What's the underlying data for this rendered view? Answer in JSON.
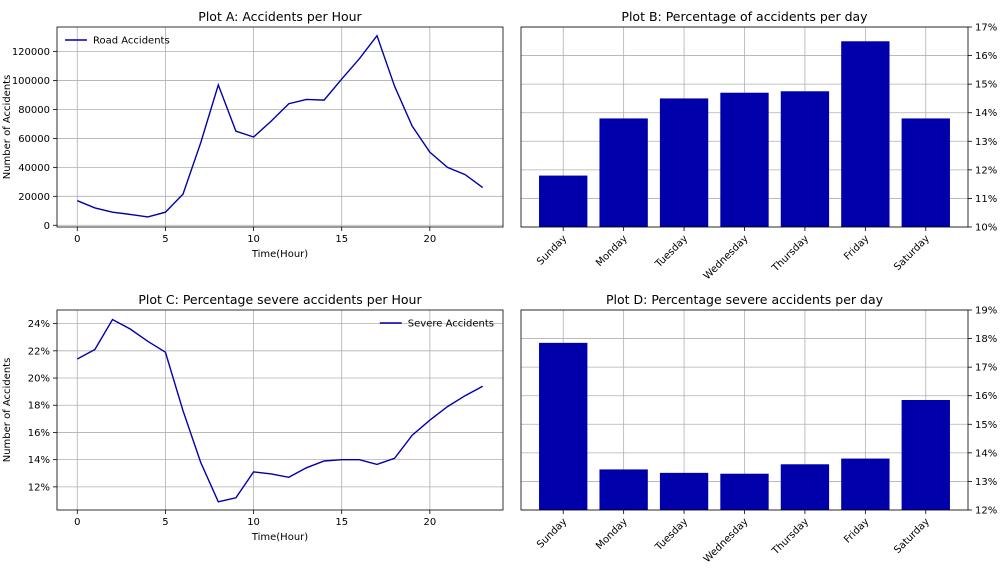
{
  "colors": {
    "accent": "#0000aa",
    "grid": "#b0b0b0",
    "axis": "#000000"
  },
  "chart_data": [
    {
      "id": "A",
      "type": "line",
      "title": "Plot A: Accidents per Hour",
      "xlabel": "Time(Hour)",
      "ylabel": "Number of Accidents",
      "xlim": [
        -1.15,
        24.15
      ],
      "ylim": [
        -1200,
        137000
      ],
      "xticks": [
        0,
        5,
        10,
        15,
        20
      ],
      "xtick_labels": [
        "0",
        "5",
        "10",
        "15",
        "20"
      ],
      "yticks": [
        0,
        20000,
        40000,
        60000,
        80000,
        100000,
        120000
      ],
      "ytick_labels": [
        "0",
        "20000",
        "40000",
        "60000",
        "80000",
        "100000",
        "120000"
      ],
      "y_axis_side": "left",
      "grid": true,
      "legend_position": "top-left",
      "series": [
        {
          "name": "Road Accidents",
          "x": [
            0,
            1,
            2,
            3,
            4,
            5,
            6,
            7,
            8,
            9,
            10,
            11,
            12,
            13,
            14,
            15,
            16,
            17,
            18,
            19,
            20,
            21,
            22,
            23
          ],
          "values": [
            17000,
            12000,
            9000,
            7500,
            5800,
            9000,
            21500,
            57000,
            97000,
            65000,
            61000,
            72000,
            84000,
            87000,
            86500,
            101000,
            115000,
            131000,
            96000,
            68500,
            50500,
            40000,
            35000,
            26000
          ]
        }
      ]
    },
    {
      "id": "B",
      "type": "bar",
      "title": "Plot B: Percentage of accidents per day",
      "categories": [
        "Sunday",
        "Monday",
        "Tuesday",
        "Wednesday",
        "Thursday",
        "Friday",
        "Saturday"
      ],
      "values": [
        11.8,
        13.8,
        14.5,
        14.7,
        14.75,
        16.5,
        13.8
      ],
      "ylim": [
        10,
        17
      ],
      "yticks": [
        10,
        11,
        12,
        13,
        14,
        15,
        16,
        17
      ],
      "ytick_labels": [
        "10%",
        "11%",
        "12%",
        "13%",
        "14%",
        "15%",
        "16%",
        "17%"
      ],
      "y_axis_side": "right",
      "grid": true
    },
    {
      "id": "C",
      "type": "line",
      "title": "Plot C: Percentage severe accidents per Hour",
      "xlabel": "Time(Hour)",
      "ylabel": "Number of Accidents",
      "xlim": [
        -1.15,
        24.15
      ],
      "ylim": [
        10.3,
        25
      ],
      "xticks": [
        0,
        5,
        10,
        15,
        20
      ],
      "xtick_labels": [
        "0",
        "5",
        "10",
        "15",
        "20"
      ],
      "yticks": [
        12,
        14,
        16,
        18,
        20,
        22,
        24
      ],
      "ytick_labels": [
        "12%",
        "14%",
        "16%",
        "18%",
        "20%",
        "22%",
        "24%"
      ],
      "y_axis_side": "left",
      "grid": true,
      "legend_position": "top-right",
      "series": [
        {
          "name": "Severe Accidents",
          "x": [
            0,
            1,
            2,
            3,
            4,
            5,
            6,
            7,
            8,
            9,
            10,
            11,
            12,
            13,
            14,
            15,
            16,
            17,
            18,
            19,
            20,
            21,
            22,
            23
          ],
          "values": [
            21.4,
            22.1,
            24.3,
            23.6,
            22.7,
            21.9,
            17.6,
            13.8,
            10.9,
            11.2,
            13.1,
            12.95,
            12.7,
            13.4,
            13.9,
            14.0,
            14.0,
            13.65,
            14.1,
            15.8,
            16.9,
            17.9,
            18.7,
            19.4
          ]
        }
      ]
    },
    {
      "id": "D",
      "type": "bar",
      "title": "Plot D: Percentage severe accidents per day",
      "categories": [
        "Sunday",
        "Monday",
        "Tuesday",
        "Wednesday",
        "Thursday",
        "Friday",
        "Saturday"
      ],
      "values": [
        17.85,
        13.42,
        13.3,
        13.27,
        13.6,
        13.8,
        15.85
      ],
      "ylim": [
        12,
        19
      ],
      "yticks": [
        12,
        13,
        14,
        15,
        16,
        17,
        18,
        19
      ],
      "ytick_labels": [
        "12%",
        "13%",
        "14%",
        "15%",
        "16%",
        "17%",
        "18%",
        "19%"
      ],
      "y_axis_side": "right",
      "grid": true
    }
  ]
}
